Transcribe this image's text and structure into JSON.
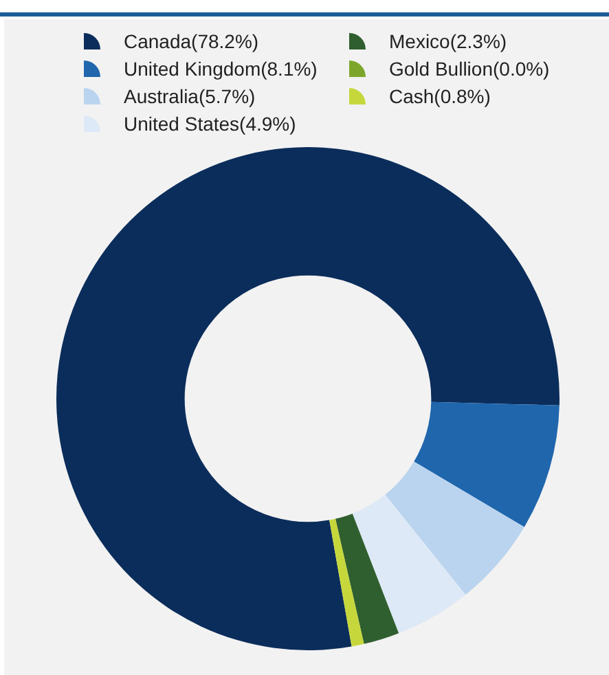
{
  "chart_data": {
    "type": "donut",
    "categories": [
      "Canada(78.2%)",
      "United Kingdom(8.1%)",
      "Australia(5.7%)",
      "United States(4.9%)",
      "Mexico(2.3%)",
      "Gold Bullion(0.0%)",
      "Cash(0.8%)"
    ],
    "values": [
      78.2,
      8.1,
      5.7,
      4.9,
      2.3,
      0.0,
      0.8
    ],
    "colors": [
      "#0b2d5b",
      "#1f66ad",
      "#bad4ef",
      "#dde9f7",
      "#2f5f2e",
      "#7da72c",
      "#c6d73c"
    ],
    "legend": "top"
  }
}
